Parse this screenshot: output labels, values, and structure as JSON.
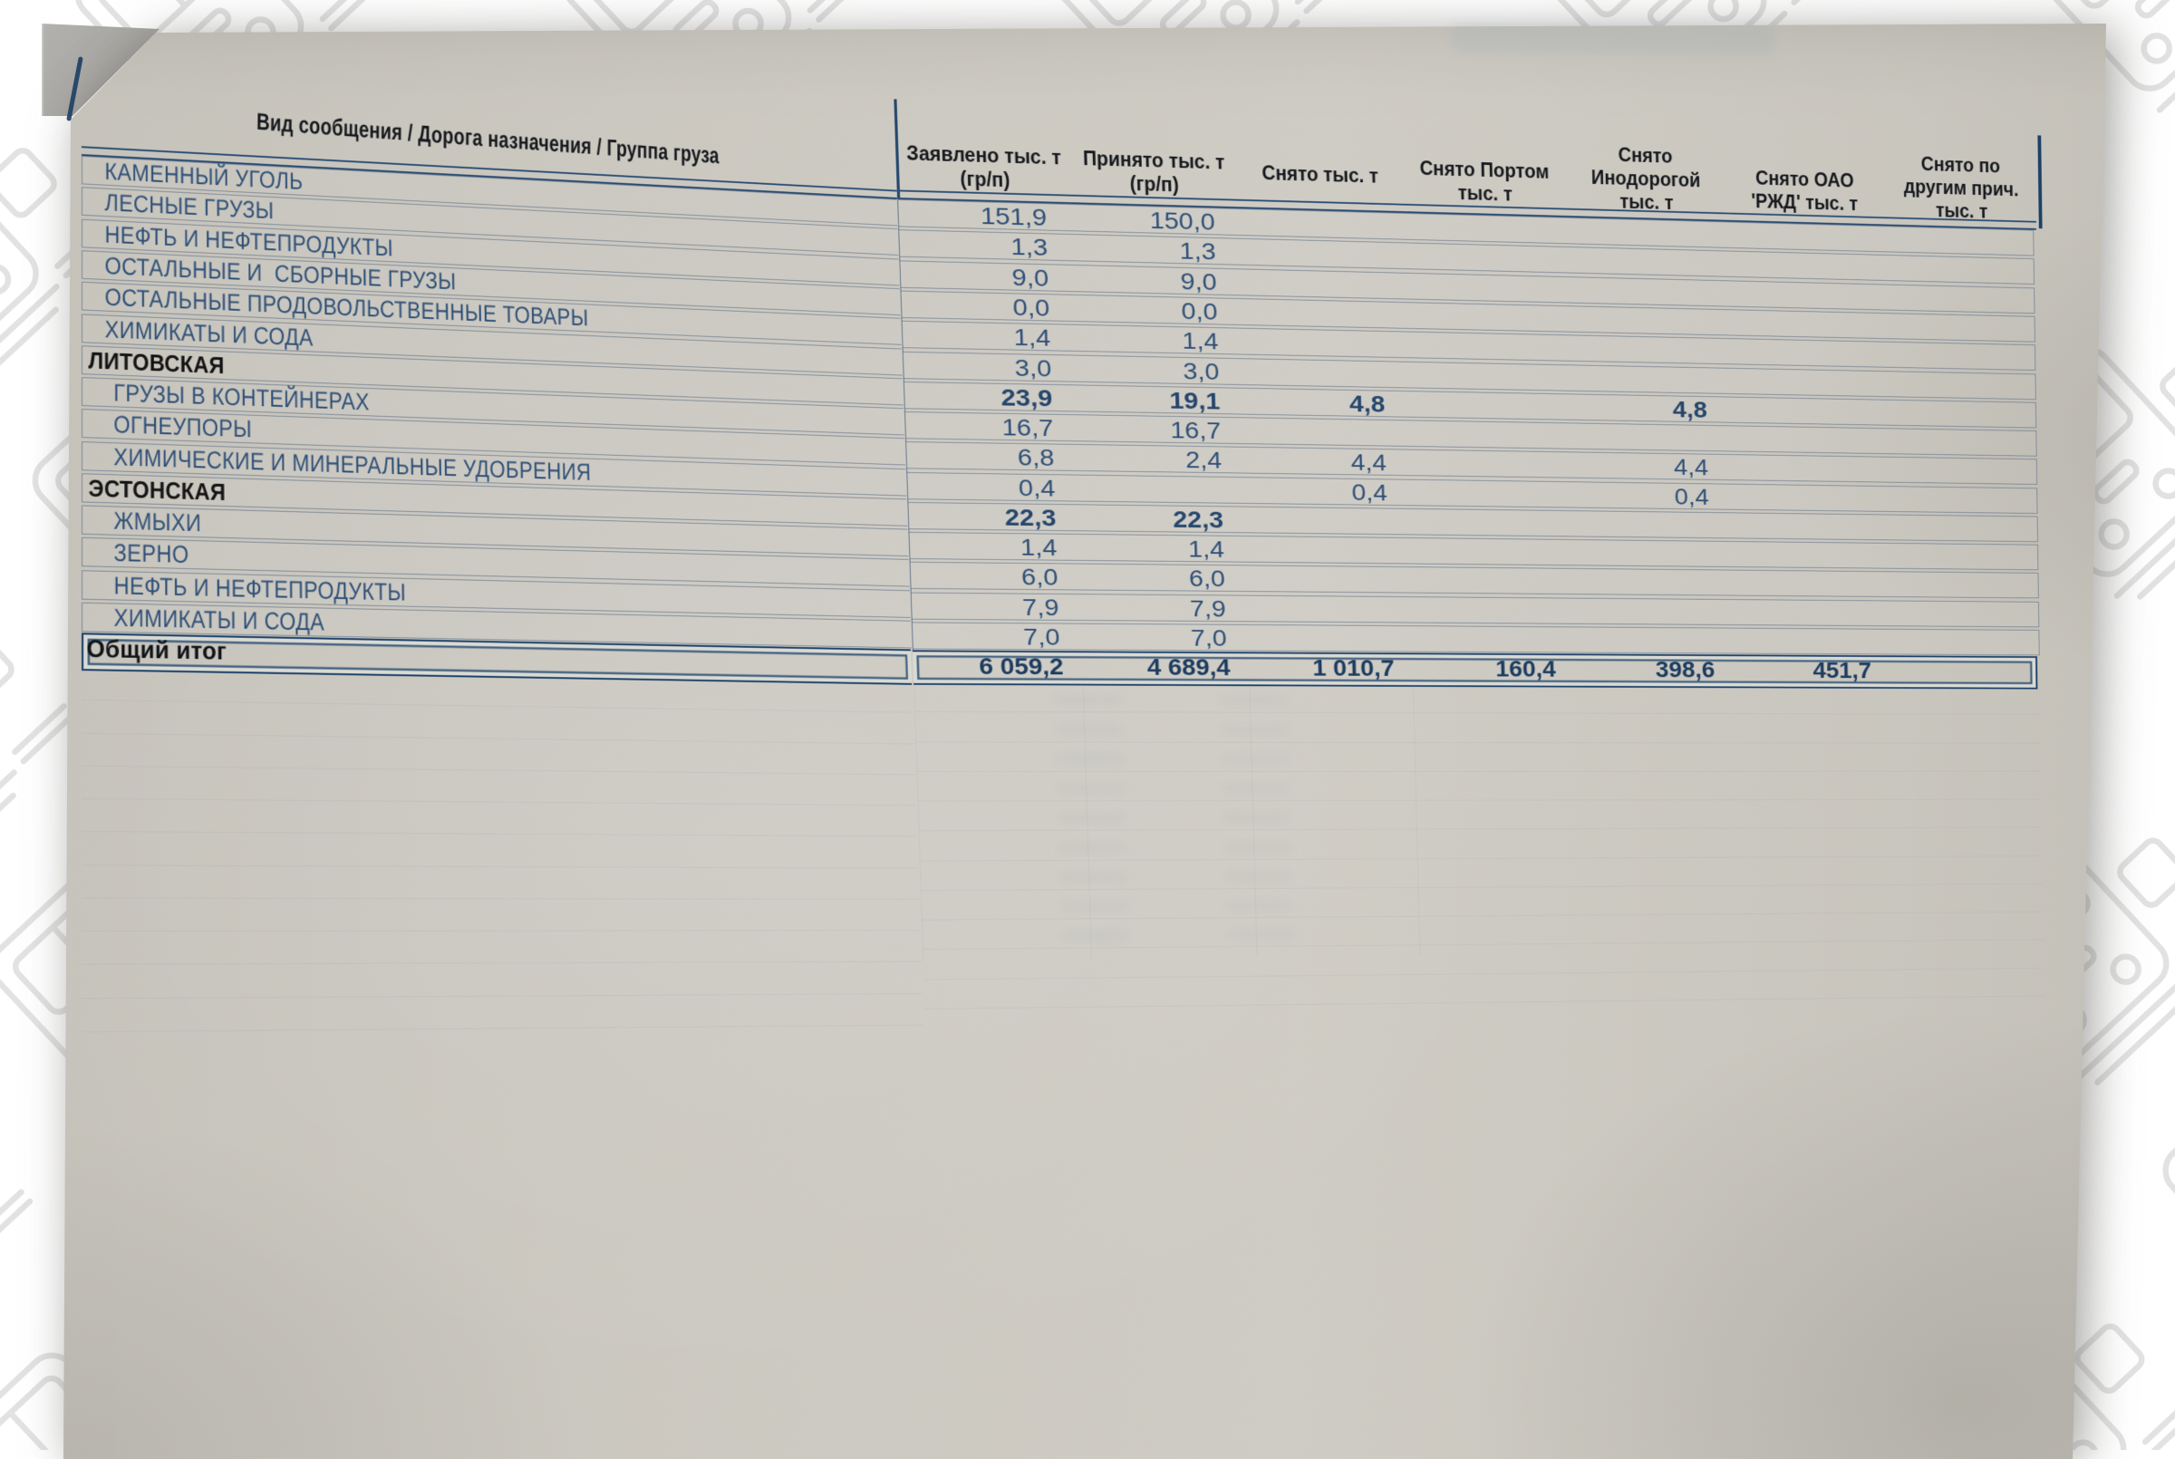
{
  "page": {
    "type": "photographed printed spreadsheet",
    "language": "ru",
    "description": "Photo of a tilted sheet of gray paper with a Russian railway freight table, on a white background with a light train line-art watermark"
  },
  "watermark": {
    "icon": "train-locomotive-line-art",
    "color": "#dcdcdc"
  },
  "table": {
    "corner_header": "Вид сообщения / Дорога назначения / Группа груза",
    "columns": [
      {
        "lines": [
          "Заявлено тыс. т",
          "(гр/п)"
        ]
      },
      {
        "lines": [
          "Принято тыс. т",
          "(гр/п)"
        ]
      },
      {
        "lines": [
          "Снято тыс. т"
        ]
      },
      {
        "lines": [
          "Снято Портом",
          "тыс. т"
        ]
      },
      {
        "lines": [
          "Снято",
          "Инодорогой",
          "тыс. т"
        ]
      },
      {
        "lines": [
          "Снято ОАО",
          "'РЖД' тыс. т"
        ]
      },
      {
        "lines": [
          "Снято по",
          "другим прич.",
          "тыс. т"
        ]
      }
    ],
    "rows": [
      {
        "label": "КАМЕННЫЙ УГОЛЬ",
        "level": "item",
        "values": [
          "151,9",
          "150,0",
          "",
          "",
          "",
          "",
          ""
        ]
      },
      {
        "label": "ЛЕСНЫЕ ГРУЗЫ",
        "level": "item",
        "values": [
          "1,3",
          "1,3",
          "",
          "",
          "",
          "",
          ""
        ]
      },
      {
        "label": "НЕФТЬ И НЕФТЕПРОДУКТЫ",
        "level": "item",
        "values": [
          "9,0",
          "9,0",
          "",
          "",
          "",
          "",
          ""
        ]
      },
      {
        "label": "ОСТАЛЬНЫЕ И  СБОРНЫЕ ГРУЗЫ",
        "level": "item",
        "values": [
          "0,0",
          "0,0",
          "",
          "",
          "",
          "",
          ""
        ]
      },
      {
        "label": "ОСТАЛЬНЫЕ ПРОДОВОЛЬСТВЕННЫЕ ТОВАРЫ",
        "level": "item",
        "values": [
          "1,4",
          "1,4",
          "",
          "",
          "",
          "",
          ""
        ]
      },
      {
        "label": "ХИМИКАТЫ И СОДА",
        "level": "item",
        "values": [
          "3,0",
          "3,0",
          "",
          "",
          "",
          "",
          ""
        ]
      },
      {
        "label": "ЛИТОВСКАЯ",
        "level": "group",
        "values": [
          "23,9",
          "19,1",
          "4,8",
          "",
          "4,8",
          "",
          ""
        ]
      },
      {
        "label": "ГРУЗЫ В КОНТЕЙНЕРАХ",
        "level": "subitem",
        "values": [
          "16,7",
          "16,7",
          "",
          "",
          "",
          "",
          ""
        ]
      },
      {
        "label": "ОГНЕУПОРЫ",
        "level": "subitem",
        "values": [
          "6,8",
          "2,4",
          "4,4",
          "",
          "4,4",
          "",
          ""
        ]
      },
      {
        "label": "ХИМИЧЕСКИЕ И МИНЕРАЛЬНЫЕ УДОБРЕНИЯ",
        "level": "subitem",
        "values": [
          "0,4",
          "",
          "0,4",
          "",
          "0,4",
          "",
          ""
        ]
      },
      {
        "label": "ЭСТОНСКАЯ",
        "level": "group",
        "values": [
          "22,3",
          "22,3",
          "",
          "",
          "",
          "",
          ""
        ]
      },
      {
        "label": "ЖМЫХИ",
        "level": "subitem",
        "values": [
          "1,4",
          "1,4",
          "",
          "",
          "",
          "",
          ""
        ]
      },
      {
        "label": "ЗЕРНО",
        "level": "subitem",
        "values": [
          "6,0",
          "6,0",
          "",
          "",
          "",
          "",
          ""
        ]
      },
      {
        "label": "НЕФТЬ И НЕФТЕПРОДУКТЫ",
        "level": "subitem",
        "values": [
          "7,9",
          "7,9",
          "",
          "",
          "",
          "",
          ""
        ]
      },
      {
        "label": "ХИМИКАТЫ И СОДА",
        "level": "subitem",
        "values": [
          "7,0",
          "7,0",
          "",
          "",
          "",
          "",
          ""
        ]
      }
    ],
    "totals": {
      "label": "Общий итог",
      "values": [
        "6 059,2",
        "4 689,4",
        "1 010,7",
        "160,4",
        "398,6",
        "451,7",
        ""
      ]
    }
  },
  "colors": {
    "paper": "#ccc9c1",
    "navy_border": "#24496f",
    "row_line": "#71849a",
    "label_text": "#2e4f77",
    "header_text": "#15181c",
    "totals_text": "#1d3c60"
  }
}
